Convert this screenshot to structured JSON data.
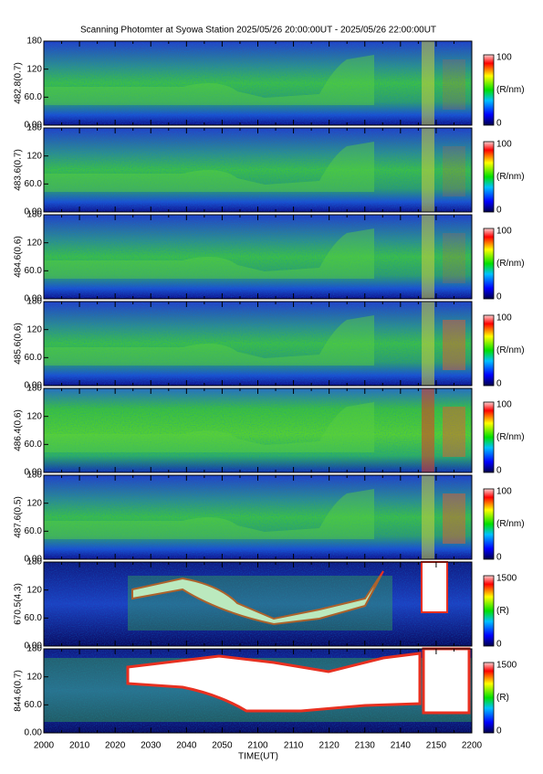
{
  "title": "Scanning Photomter at Syowa Station 2025/05/26 20:00:00UT - 2025/05/26 22:00:00UT",
  "x_axis": {
    "label": "TIME(UT)",
    "ticks": [
      "2000",
      "2010",
      "2020",
      "2030",
      "2040",
      "2050",
      "2100",
      "2110",
      "2120",
      "2130",
      "2140",
      "2150",
      "2200"
    ]
  },
  "panels": [
    {
      "label": "482.8(0.7)",
      "yticks": [
        "0.00",
        "60.0",
        "120",
        "180"
      ],
      "colorbar": {
        "max": "100",
        "unit": "(R/nm)",
        "min": "0"
      }
    },
    {
      "label": "483.6(0.7)",
      "yticks": [
        "0.00",
        "60.0",
        "120",
        "180"
      ],
      "colorbar": {
        "max": "100",
        "unit": "(R/nm)",
        "min": "0"
      }
    },
    {
      "label": "484.6(0.6)",
      "yticks": [
        "0.00",
        "60.0",
        "120",
        "180"
      ],
      "colorbar": {
        "max": "100",
        "unit": "(R/nm)",
        "min": "0"
      }
    },
    {
      "label": "485.6(0.6)",
      "yticks": [
        "0.00",
        "60.0",
        "120",
        "180"
      ],
      "colorbar": {
        "max": "100",
        "unit": "(R/nm)",
        "min": "0"
      }
    },
    {
      "label": "486.4(0.6)",
      "yticks": [
        "0.00",
        "60.0",
        "120",
        "180"
      ],
      "colorbar": {
        "max": "100",
        "unit": "(R/nm)",
        "min": "0"
      }
    },
    {
      "label": "487.6(0.5)",
      "yticks": [
        "0.00",
        "60.0",
        "120",
        "180"
      ],
      "colorbar": {
        "max": "100",
        "unit": "(R/nm)",
        "min": "0"
      }
    },
    {
      "label": "670.5(4.3)",
      "yticks": [
        "0.00",
        "60.0",
        "120",
        "180"
      ],
      "colorbar": {
        "max": "1500",
        "unit": "(R)",
        "min": "0"
      }
    },
    {
      "label": "844.6(0.7)",
      "yticks": [
        "0.00",
        "60.0",
        "120",
        "180"
      ],
      "colorbar": {
        "max": "1500",
        "unit": "(R)",
        "min": "0"
      }
    }
  ]
}
